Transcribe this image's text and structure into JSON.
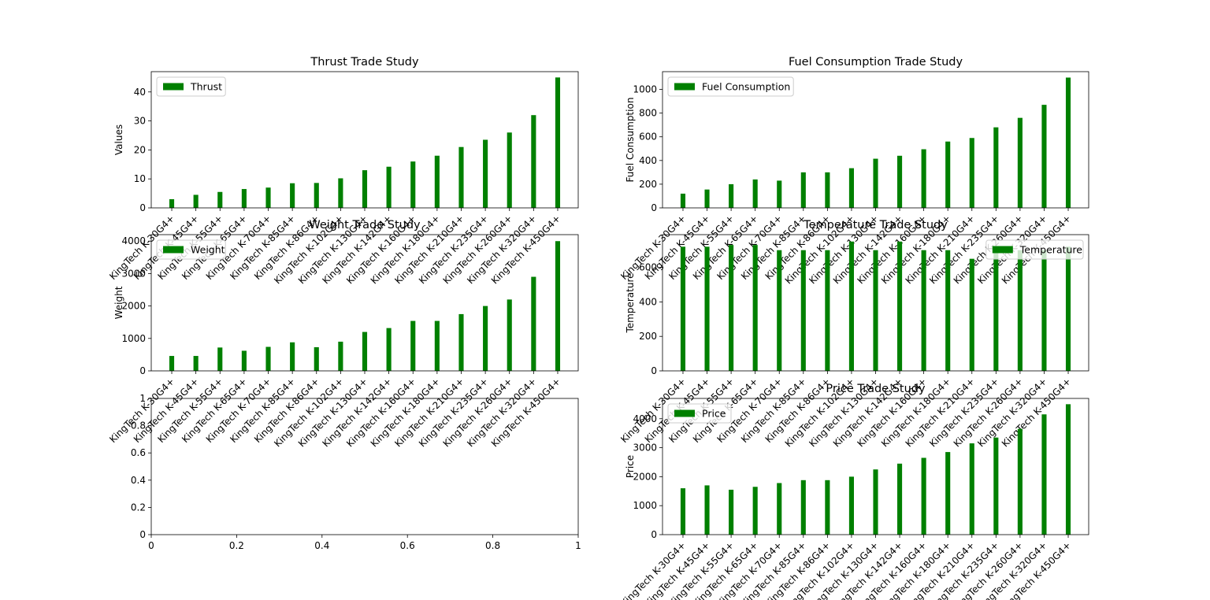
{
  "colors": {
    "bar": "#008000",
    "axis": "#000000",
    "background": "#ffffff",
    "legend_border": "#cccccc"
  },
  "chart_data": [
    {
      "type": "bar",
      "title": "Thrust Trade Study",
      "xlabel": "",
      "ylabel": "Values",
      "ylim": [
        0,
        47
      ],
      "yticks": [
        0,
        10,
        20,
        30,
        40
      ],
      "legend": "top-left",
      "grid": false,
      "categories": [
        "KingTech K-30G4+",
        "KingTech K-45G4+",
        "KingTech K-55G4+",
        "KingTech K-65G4+",
        "KingTech K-70G4+",
        "KingTech K-85G4+",
        "KingTech K-86G4+",
        "KingTech K-102G4+",
        "KingTech K-130G4+",
        "KingTech K-142G4+",
        "KingTech K-160G4+",
        "KingTech K-180G4+",
        "KingTech K-210G4+",
        "KingTech K-235G4+",
        "KingTech K-260G4+",
        "KingTech K-320G4+",
        "KingTech K-450G4+"
      ],
      "series": [
        {
          "name": "Thrust",
          "values": [
            3,
            4.5,
            5.5,
            6.5,
            7,
            8.5,
            8.6,
            10.2,
            13,
            14.2,
            16,
            18,
            21,
            23.5,
            26,
            32,
            45
          ]
        }
      ]
    },
    {
      "type": "bar",
      "title": "Fuel Consumption Trade Study",
      "xlabel": "",
      "ylabel": "Fuel Consumption",
      "ylim": [
        0,
        1150
      ],
      "yticks": [
        0,
        200,
        400,
        600,
        800,
        1000
      ],
      "legend": "top-left",
      "grid": false,
      "categories": [
        "KingTech K-30G4+",
        "KingTech K-45G4+",
        "KingTech K-55G4+",
        "KingTech K-65G4+",
        "KingTech K-70G4+",
        "KingTech K-85G4+",
        "KingTech K-86G4+",
        "KingTech K-102G4+",
        "KingTech K-130G4+",
        "KingTech K-142G4+",
        "KingTech K-160G4+",
        "KingTech K-180G4+",
        "KingTech K-210G4+",
        "KingTech K-235G4+",
        "KingTech K-260G4+",
        "KingTech K-320G4+",
        "KingTech K-450G4+"
      ],
      "series": [
        {
          "name": "Fuel Consumption",
          "values": [
            120,
            155,
            200,
            240,
            230,
            300,
            300,
            335,
            415,
            440,
            495,
            560,
            590,
            680,
            760,
            870,
            1100
          ]
        }
      ]
    },
    {
      "type": "bar",
      "title": "Weight Trade Study",
      "xlabel": "",
      "ylabel": "Weight",
      "ylim": [
        0,
        4200
      ],
      "yticks": [
        0,
        1000,
        2000,
        3000,
        4000
      ],
      "legend": "top-left",
      "grid": false,
      "categories": [
        "KingTech K-30G4+",
        "KingTech K-45G4+",
        "KingTech K-55G4+",
        "KingTech K-65G4+",
        "KingTech K-70G4+",
        "KingTech K-85G4+",
        "KingTech K-86G4+",
        "KingTech K-102G4+",
        "KingTech K-130G4+",
        "KingTech K-142G4+",
        "KingTech K-160G4+",
        "KingTech K-180G4+",
        "KingTech K-210G4+",
        "KingTech K-235G4+",
        "KingTech K-260G4+",
        "KingTech K-320G4+",
        "KingTech K-450G4+"
      ],
      "series": [
        {
          "name": "Weight",
          "values": [
            460,
            460,
            720,
            620,
            740,
            880,
            730,
            900,
            1200,
            1320,
            1540,
            1540,
            1750,
            2000,
            2200,
            2900,
            4000
          ]
        }
      ]
    },
    {
      "type": "bar",
      "title": "Temperature Trade Study",
      "xlabel": "",
      "ylabel": "Temperature",
      "ylim": [
        0,
        790
      ],
      "yticks": [
        0,
        200,
        400,
        600
      ],
      "legend": "top-right",
      "grid": false,
      "categories": [
        "KingTech K-30G4+",
        "KingTech K-45G4+",
        "KingTech K-55G4+",
        "KingTech K-65G4+",
        "KingTech K-70G4+",
        "KingTech K-85G4+",
        "KingTech K-86G4+",
        "KingTech K-102G4+",
        "KingTech K-130G4+",
        "KingTech K-142G4+",
        "KingTech K-160G4+",
        "KingTech K-180G4+",
        "KingTech K-210G4+",
        "KingTech K-235G4+",
        "KingTech K-260G4+",
        "KingTech K-320G4+",
        "KingTech K-450G4+"
      ],
      "series": [
        {
          "name": "Temperature",
          "values": [
            720,
            720,
            730,
            730,
            700,
            700,
            700,
            750,
            700,
            750,
            700,
            700,
            650,
            720,
            700,
            700,
            720
          ]
        }
      ]
    },
    {
      "type": "bar",
      "title": "",
      "xlabel": "",
      "ylabel": "",
      "xlim": [
        0,
        1
      ],
      "ylim": [
        0,
        1
      ],
      "xticks": [
        0.0,
        0.2,
        0.4,
        0.6,
        0.8,
        1.0
      ],
      "yticks": [
        0.0,
        0.2,
        0.4,
        0.6,
        0.8,
        1.0
      ],
      "empty": true,
      "grid": false,
      "categories": [],
      "series": []
    },
    {
      "type": "bar",
      "title": "Price Trade Study",
      "xlabel": "",
      "ylabel": "Price",
      "ylim": [
        0,
        4700
      ],
      "yticks": [
        0,
        1000,
        2000,
        3000,
        4000
      ],
      "legend": "top-left",
      "grid": false,
      "categories": [
        "KingTech K-30G4+",
        "KingTech K-45G4+",
        "KingTech K-55G4+",
        "KingTech K-65G4+",
        "KingTech K-70G4+",
        "KingTech K-85G4+",
        "KingTech K-86G4+",
        "KingTech K-102G4+",
        "KingTech K-130G4+",
        "KingTech K-142G4+",
        "KingTech K-160G4+",
        "KingTech K-180G4+",
        "KingTech K-210G4+",
        "KingTech K-235G4+",
        "KingTech K-260G4+",
        "KingTech K-320G4+",
        "KingTech K-450G4+"
      ],
      "series": [
        {
          "name": "Price",
          "values": [
            1600,
            1700,
            1550,
            1650,
            1780,
            1880,
            1880,
            2000,
            2250,
            2450,
            2650,
            2850,
            3150,
            3350,
            3650,
            4150,
            4500
          ]
        }
      ]
    }
  ]
}
